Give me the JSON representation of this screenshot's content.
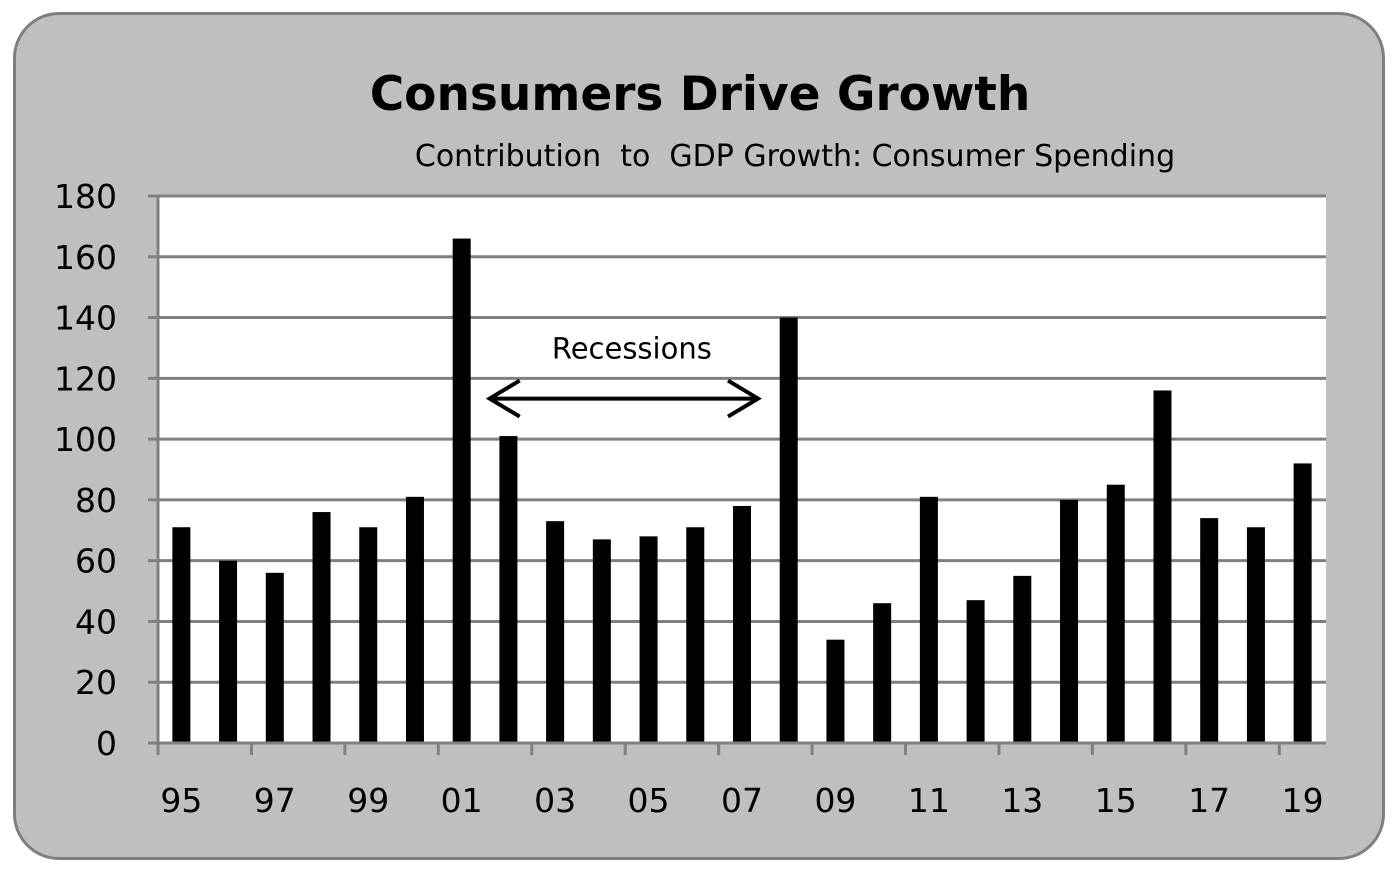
{
  "chart_data": {
    "type": "bar",
    "title": "Consumers Drive Growth",
    "subtitle": "Contribution  to  GDP Growth: Consumer Spending",
    "xlabel": "",
    "ylabel": "",
    "ylim": [
      0,
      180
    ],
    "yticks": [
      0,
      20,
      40,
      60,
      80,
      100,
      120,
      140,
      160,
      180
    ],
    "categories": [
      "95",
      "96",
      "97",
      "98",
      "99",
      "00",
      "01",
      "02",
      "03",
      "04",
      "05",
      "06",
      "07",
      "08",
      "09",
      "10",
      "11",
      "12",
      "13",
      "14",
      "15",
      "16",
      "17",
      "18",
      "19"
    ],
    "xtick_labels": [
      "95",
      "97",
      "99",
      "01",
      "03",
      "05",
      "07",
      "09",
      "11",
      "13",
      "15",
      "17",
      "19"
    ],
    "values": [
      71,
      60,
      56,
      76,
      71,
      81,
      166,
      101,
      73,
      67,
      68,
      71,
      78,
      140,
      34,
      46,
      81,
      47,
      55,
      80,
      85,
      116,
      74,
      71,
      92
    ],
    "grid": true,
    "bar_color": "#000000",
    "annotations": [
      {
        "text": "Recessions",
        "type": "double-arrow",
        "from": "01",
        "to": "07",
        "y": 114
      }
    ]
  },
  "colors": {
    "frame_background": "#bfbfbf",
    "frame_border": "#7f7f7f",
    "plot_background": "#ffffff",
    "gridline": "#808080",
    "bars": "#000000"
  }
}
